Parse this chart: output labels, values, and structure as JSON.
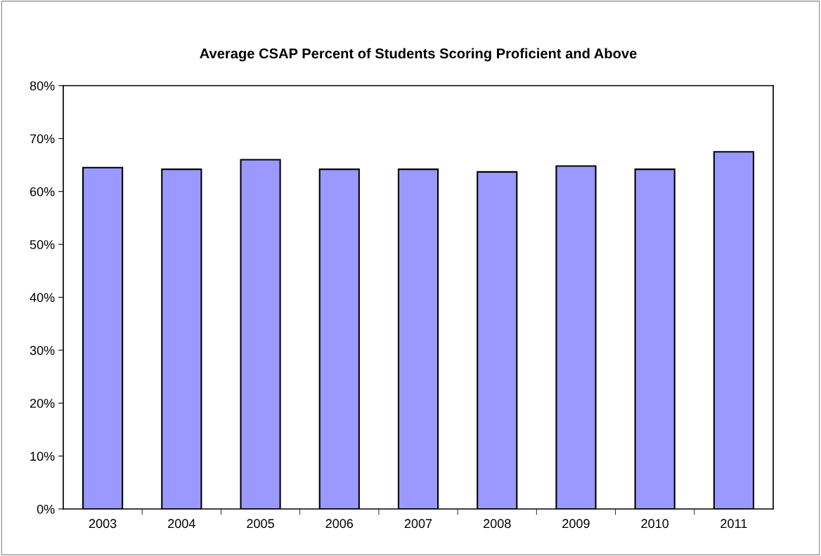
{
  "chart_data": {
    "type": "bar",
    "title": "Average CSAP Percent of Students Scoring Proficient and Above",
    "categories": [
      "2003",
      "2004",
      "2005",
      "2006",
      "2007",
      "2008",
      "2009",
      "2010",
      "2011"
    ],
    "values": [
      64.5,
      64.2,
      66.0,
      64.2,
      64.2,
      63.7,
      64.8,
      64.2,
      67.5
    ],
    "color": "#9999ff",
    "ylim": [
      0,
      80
    ],
    "yticks": [
      {
        "value": 0,
        "label": "0%"
      },
      {
        "value": 10,
        "label": "10%"
      },
      {
        "value": 20,
        "label": "20%"
      },
      {
        "value": 30,
        "label": "30%"
      },
      {
        "value": 40,
        "label": "40%"
      },
      {
        "value": 50,
        "label": "50%"
      },
      {
        "value": 60,
        "label": "60%"
      },
      {
        "value": 70,
        "label": "70%"
      },
      {
        "value": 80,
        "label": "80%"
      }
    ],
    "grid": false,
    "legend": false
  }
}
